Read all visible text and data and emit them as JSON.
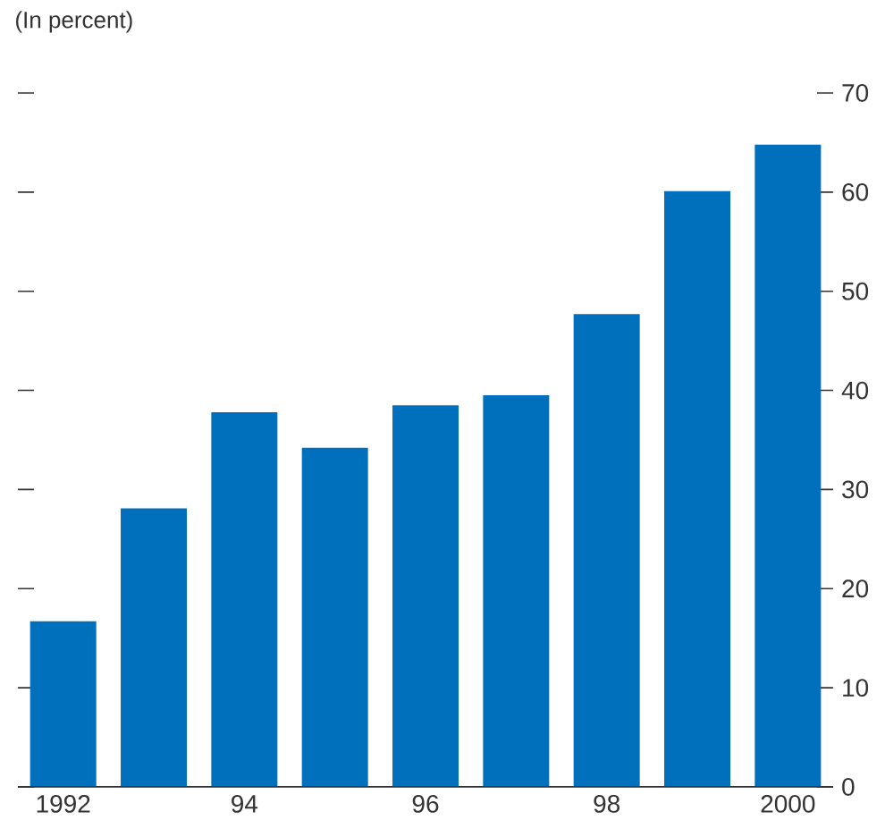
{
  "chart_data": {
    "type": "bar",
    "title": "(In percent)",
    "categories": [
      "1992",
      null,
      "94",
      null,
      "96",
      null,
      "98",
      null,
      "2000"
    ],
    "values": [
      16.7,
      28.1,
      37.8,
      34.2,
      38.5,
      39.5,
      47.7,
      60.1,
      64.8
    ],
    "color": "#0070bd",
    "ylim": [
      0,
      70
    ],
    "yticks": [
      0,
      10,
      20,
      30,
      40,
      50,
      60,
      70
    ]
  }
}
